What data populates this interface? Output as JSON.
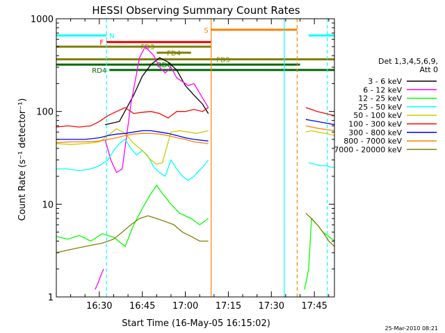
{
  "chart_data": {
    "type": "line",
    "title": "HESSI Observing Summary Count Rates",
    "xlabel": "Start Time (16-May-05 16:15:02)",
    "ylabel": "Count Rate (s⁻¹ detector⁻¹)",
    "yscale": "log",
    "ylim": [
      1,
      1000
    ],
    "xlim_minutes": [
      0,
      97
    ],
    "x_ticks": [
      {
        "label": "16:30",
        "t": 15
      },
      {
        "label": "16:45",
        "t": 30
      },
      {
        "label": "17:00",
        "t": 45
      },
      {
        "label": "17:15",
        "t": 60
      },
      {
        "label": "17:30",
        "t": 75
      },
      {
        "label": "17:45",
        "t": 90
      }
    ],
    "y_ticks": [
      {
        "label": "1",
        "value": 1
      },
      {
        "label": "10",
        "value": 10
      },
      {
        "label": "100",
        "value": 100
      },
      {
        "label": "1000",
        "value": 1000
      }
    ],
    "grid": false,
    "legend": {
      "position": "right",
      "header": [
        "Det 1,3,4,5,6,9,",
        "Att 0"
      ]
    },
    "series": [
      {
        "name": "3 - 6 keV",
        "color": "#000000",
        "segments": [
          [
            [
              17,
              72
            ],
            [
              22,
              78
            ],
            [
              27,
              150
            ],
            [
              30,
              240
            ],
            [
              33,
              320
            ],
            [
              36,
              380
            ],
            [
              39,
              340
            ],
            [
              42,
              280
            ],
            [
              45,
              190
            ],
            [
              48,
              150
            ],
            [
              51,
              120
            ],
            [
              53,
              95
            ]
          ]
        ]
      },
      {
        "name": "6 - 12 keV",
        "color": "#ff00ff",
        "segments": [
          [
            [
              13.5,
              1.2
            ],
            [
              14.5,
              1.4
            ],
            [
              15.5,
              1.7
            ],
            [
              16.5,
              2.0
            ]
          ],
          [
            [
              17,
              50
            ],
            [
              19,
              30
            ],
            [
              21,
              22
            ],
            [
              23,
              24
            ],
            [
              26,
              120
            ],
            [
              29,
              380
            ],
            [
              31,
              500
            ],
            [
              34,
              400
            ],
            [
              36,
              300
            ],
            [
              38,
              260
            ],
            [
              40,
              300
            ],
            [
              42,
              230
            ],
            [
              44,
              210
            ],
            [
              46,
              190
            ],
            [
              48,
              200
            ],
            [
              51,
              140
            ],
            [
              53,
              110
            ]
          ]
        ]
      },
      {
        "name": "12 - 25 keV",
        "color": "#00ff00",
        "segments": [
          [
            [
              0,
              4.5
            ],
            [
              4,
              4.2
            ],
            [
              8,
              4.6
            ],
            [
              12,
              4.0
            ],
            [
              16,
              4.8
            ],
            [
              20,
              4.4
            ],
            [
              24,
              3.5
            ],
            [
              27,
              6
            ],
            [
              30,
              9
            ],
            [
              33,
              13
            ],
            [
              35,
              16
            ],
            [
              37,
              13
            ],
            [
              40,
              10
            ],
            [
              43,
              8
            ],
            [
              47,
              7
            ],
            [
              50,
              6
            ],
            [
              53,
              7
            ]
          ],
          [
            [
              86.5,
              1.2
            ],
            [
              87,
              1.4
            ],
            [
              88,
              2.0
            ],
            [
              89,
              7
            ],
            [
              91,
              6
            ],
            [
              93,
              5
            ],
            [
              95,
              4.5
            ],
            [
              97,
              4.0
            ]
          ]
        ]
      },
      {
        "name": "25 - 50 keV",
        "color": "#00ffff",
        "segments": [
          [
            [
              0,
              24
            ],
            [
              4,
              24
            ],
            [
              8,
              23
            ],
            [
              12,
              24
            ],
            [
              15,
              26
            ],
            [
              18,
              30
            ],
            [
              20,
              38
            ],
            [
              22,
              45
            ],
            [
              24,
              50
            ],
            [
              26,
              40
            ],
            [
              28,
              34
            ],
            [
              30,
              38
            ],
            [
              32,
              33
            ],
            [
              34,
              25
            ],
            [
              36,
              22
            ],
            [
              38,
              20
            ],
            [
              40,
              30
            ],
            [
              42,
              24
            ],
            [
              44,
              20
            ],
            [
              46,
              18
            ],
            [
              48,
              20
            ],
            [
              51,
              25
            ],
            [
              53,
              30
            ]
          ],
          [
            [
              88,
              28
            ],
            [
              90,
              27
            ],
            [
              92,
              26
            ],
            [
              94,
              26
            ],
            [
              96,
              25
            ],
            [
              97,
              25
            ]
          ]
        ]
      },
      {
        "name": "50 - 100 keV",
        "color": "#cccc00",
        "segments": [
          [
            [
              0,
              45
            ],
            [
              5,
              44
            ],
            [
              10,
              45
            ],
            [
              15,
              47
            ],
            [
              18,
              55
            ],
            [
              21,
              65
            ],
            [
              24,
              58
            ],
            [
              27,
              45
            ],
            [
              30,
              38
            ],
            [
              33,
              30
            ],
            [
              35,
              27
            ],
            [
              37,
              28
            ],
            [
              40,
              60
            ],
            [
              43,
              62
            ],
            [
              46,
              60
            ],
            [
              49,
              58
            ],
            [
              53,
              62
            ]
          ],
          [
            [
              87,
              60
            ],
            [
              89,
              62
            ],
            [
              91,
              60
            ],
            [
              94,
              58
            ],
            [
              97,
              55
            ]
          ]
        ]
      },
      {
        "name": "100 - 300 keV",
        "color": "#ff0000",
        "segments": [
          [
            [
              0,
              68
            ],
            [
              4,
              70
            ],
            [
              8,
              68
            ],
            [
              12,
              70
            ],
            [
              15,
              78
            ],
            [
              18,
              90
            ],
            [
              21,
              100
            ],
            [
              24,
              110
            ],
            [
              27,
              95
            ],
            [
              30,
              98
            ],
            [
              33,
              100
            ],
            [
              36,
              95
            ],
            [
              39,
              85
            ],
            [
              42,
              100
            ],
            [
              45,
              100
            ],
            [
              48,
              105
            ],
            [
              51,
              100
            ],
            [
              53,
              110
            ]
          ],
          [
            [
              87,
              110
            ],
            [
              89,
              105
            ],
            [
              91,
              100
            ],
            [
              94,
              95
            ],
            [
              97,
              90
            ]
          ]
        ]
      },
      {
        "name": "300 - 800 keV",
        "color": "#0000ff",
        "segments": [
          [
            [
              0,
              50
            ],
            [
              5,
              50
            ],
            [
              10,
              50
            ],
            [
              15,
              52
            ],
            [
              18,
              55
            ],
            [
              21,
              57
            ],
            [
              24,
              58
            ],
            [
              27,
              60
            ],
            [
              30,
              62
            ],
            [
              33,
              62
            ],
            [
              36,
              60
            ],
            [
              39,
              58
            ],
            [
              42,
              55
            ],
            [
              45,
              52
            ],
            [
              48,
              50
            ],
            [
              53,
              48
            ]
          ],
          [
            [
              87,
              82
            ],
            [
              89,
              80
            ],
            [
              91,
              78
            ],
            [
              94,
              75
            ],
            [
              97,
              72
            ]
          ]
        ]
      },
      {
        "name": "800 - 7000 keV",
        "color": "#ff8000",
        "segments": [
          [
            [
              0,
              46
            ],
            [
              5,
              47
            ],
            [
              10,
              47
            ],
            [
              15,
              48
            ],
            [
              18,
              50
            ],
            [
              21,
              52
            ],
            [
              24,
              55
            ],
            [
              27,
              57
            ],
            [
              30,
              58
            ],
            [
              33,
              58
            ],
            [
              36,
              57
            ],
            [
              39,
              55
            ],
            [
              42,
              52
            ],
            [
              45,
              50
            ],
            [
              48,
              47
            ],
            [
              53,
              45
            ]
          ],
          [
            [
              87,
              70
            ],
            [
              89,
              68
            ],
            [
              91,
              66
            ],
            [
              94,
              64
            ],
            [
              97,
              62
            ]
          ]
        ]
      },
      {
        "name": "7000 - 20000 keV",
        "color": "#808000",
        "segments": [
          [
            [
              0,
              3.0
            ],
            [
              4,
              3.2
            ],
            [
              8,
              3.4
            ],
            [
              12,
              3.6
            ],
            [
              16,
              3.8
            ],
            [
              20,
              4.2
            ],
            [
              23,
              5
            ],
            [
              26,
              6
            ],
            [
              29,
              7
            ],
            [
              32,
              7.5
            ],
            [
              35,
              7
            ],
            [
              38,
              6.5
            ],
            [
              41,
              6
            ],
            [
              44,
              5
            ],
            [
              47,
              4.5
            ],
            [
              50,
              4
            ],
            [
              53,
              4
            ]
          ],
          [
            [
              87,
              8
            ],
            [
              89,
              7
            ],
            [
              91,
              6
            ],
            [
              93,
              5
            ],
            [
              95,
              4
            ],
            [
              97,
              3.5
            ]
          ]
        ]
      }
    ],
    "flag_bars": [
      {
        "label": "S",
        "color": "#ff8000",
        "t0": 54,
        "t1": 84,
        "level": 760,
        "label_side": "left"
      },
      {
        "label": "N",
        "color": "#00ffff",
        "t0": 0,
        "t1": 17.5,
        "level": 660,
        "label_side": "right"
      },
      {
        "label": "N",
        "color": "#00ffff",
        "t0": 88,
        "t1": 97,
        "level": 660,
        "label_side": "none"
      },
      {
        "label": "F",
        "color": "#ff0000",
        "t0": 17.5,
        "t1": 54,
        "level": 560,
        "label_side": "left"
      },
      {
        "label": "FD3",
        "color": "#808000",
        "t0": 0,
        "t1": 54,
        "level": 500,
        "label_side": "mid"
      },
      {
        "label": "FD4",
        "color": "#808000",
        "t0": 35,
        "t1": 47,
        "level": 430,
        "label_side": "mid"
      },
      {
        "label": "FD5",
        "color": "#808000",
        "t0": 0,
        "t1": 97,
        "level": 365,
        "label_side": "mid"
      },
      {
        "label": "RD0",
        "color": "#006600",
        "t0": 0,
        "t1": 85,
        "level": 320,
        "label_side": "mid"
      },
      {
        "label": "RD4",
        "color": "#006600",
        "t0": 18.5,
        "t1": 97,
        "level": 280,
        "label_side": "left"
      }
    ],
    "vertical_lines": [
      {
        "t": 17.5,
        "color": "#00ffff",
        "style": "dashed"
      },
      {
        "t": 54,
        "color": "#ff8000",
        "style": "solid"
      },
      {
        "t": 79.5,
        "color": "#00ffff",
        "style": "solid"
      },
      {
        "t": 84,
        "color": "#ff8000",
        "style": "dashed"
      },
      {
        "t": 94.5,
        "color": "#00ffff",
        "style": "dashed"
      }
    ],
    "timestamp": "25-Mar-2010 08:21"
  }
}
